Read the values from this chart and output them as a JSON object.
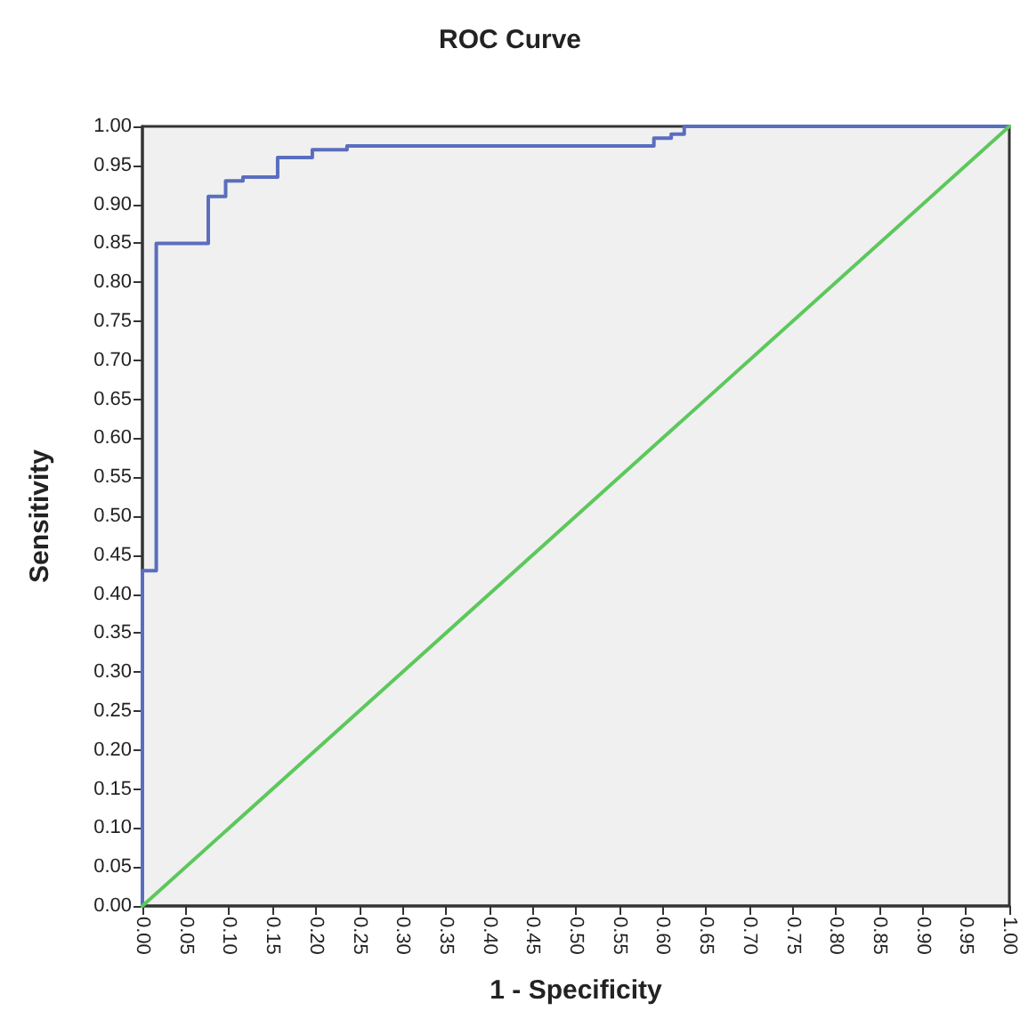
{
  "chart_data": {
    "type": "line",
    "title": "ROC Curve",
    "xlabel": "1 - Specificity",
    "ylabel": "Sensitivity",
    "series": [
      {
        "type": "step",
        "color": "#5a6ebf",
        "x": [
          0,
          0,
          0.016,
          0.076,
          0.096,
          0.116,
          0.156,
          0.196,
          0.236,
          0.59,
          0.61,
          0.625,
          1
        ],
        "values": [
          0,
          0.43,
          0.85,
          0.91,
          0.93,
          0.935,
          0.96,
          0.97,
          0.975,
          0.985,
          0.99,
          1,
          1
        ]
      },
      {
        "color": "#5cc85c",
        "x": [
          0,
          1
        ],
        "values": [
          0,
          1
        ]
      }
    ],
    "xlim": [
      0,
      1
    ],
    "ylim": [
      0,
      1
    ],
    "xticks": [
      {
        "value": 0,
        "label": "0.00"
      },
      {
        "value": 0.05,
        "label": "0.05"
      },
      {
        "value": 0.1,
        "label": "0.10"
      },
      {
        "value": 0.15,
        "label": "0.15"
      },
      {
        "value": 0.2,
        "label": "0.20"
      },
      {
        "value": 0.25,
        "label": "0.25"
      },
      {
        "value": 0.3,
        "label": "0.30"
      },
      {
        "value": 0.35,
        "label": "0.35"
      },
      {
        "value": 0.4,
        "label": "0.40"
      },
      {
        "value": 0.45,
        "label": "0.45"
      },
      {
        "value": 0.5,
        "label": "0.50"
      },
      {
        "value": 0.55,
        "label": "0.55"
      },
      {
        "value": 0.6,
        "label": "0.60"
      },
      {
        "value": 0.65,
        "label": "0.65"
      },
      {
        "value": 0.7,
        "label": "0.70"
      },
      {
        "value": 0.75,
        "label": "0.75"
      },
      {
        "value": 0.8,
        "label": "0.80"
      },
      {
        "value": 0.85,
        "label": "0.85"
      },
      {
        "value": 0.9,
        "label": "0.90"
      },
      {
        "value": 0.95,
        "label": "0.95"
      },
      {
        "value": 1,
        "label": "1.00"
      }
    ],
    "yticks": [
      {
        "value": 0,
        "label": "0.00"
      },
      {
        "value": 0.05,
        "label": "0.05"
      },
      {
        "value": 0.1,
        "label": "0.10"
      },
      {
        "value": 0.15,
        "label": "0.15"
      },
      {
        "value": 0.2,
        "label": "0.20"
      },
      {
        "value": 0.25,
        "label": "0.25"
      },
      {
        "value": 0.3,
        "label": "0.30"
      },
      {
        "value": 0.35,
        "label": "0.35"
      },
      {
        "value": 0.4,
        "label": "0.40"
      },
      {
        "value": 0.45,
        "label": "0.45"
      },
      {
        "value": 0.5,
        "label": "0.50"
      },
      {
        "value": 0.55,
        "label": "0.55"
      },
      {
        "value": 0.6,
        "label": "0.60"
      },
      {
        "value": 0.65,
        "label": "0.65"
      },
      {
        "value": 0.7,
        "label": "0.70"
      },
      {
        "value": 0.75,
        "label": "0.75"
      },
      {
        "value": 0.8,
        "label": "0.80"
      },
      {
        "value": 0.85,
        "label": "0.85"
      },
      {
        "value": 0.9,
        "label": "0.90"
      },
      {
        "value": 0.95,
        "label": "0.95"
      },
      {
        "value": 1,
        "label": "1.00"
      }
    ],
    "grid": false,
    "marker": "none",
    "line_style": "solid"
  }
}
